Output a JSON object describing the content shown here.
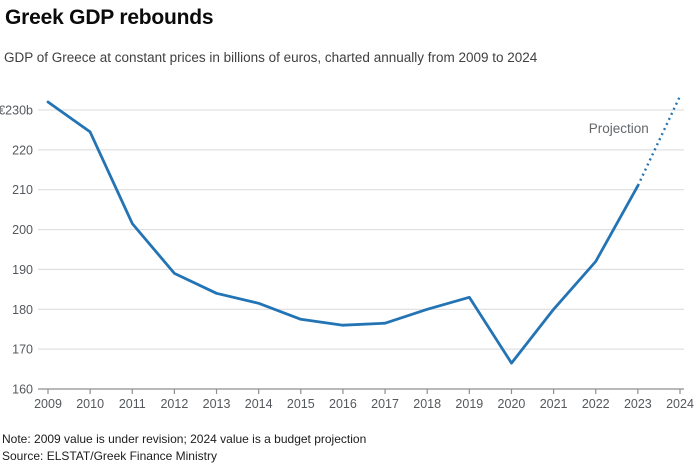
{
  "header": {
    "title": "Greek GDP rebounds",
    "subtitle": "GDP of Greece at constant prices in billions of euros, charted annually from 2009 to 2024"
  },
  "chart_data": {
    "type": "line",
    "x": [
      2009,
      2010,
      2011,
      2012,
      2013,
      2014,
      2015,
      2016,
      2017,
      2018,
      2019,
      2020,
      2021,
      2022,
      2023,
      2024
    ],
    "series": [
      {
        "name": "GDP of Greece at constant prices (billions of euros)",
        "values": [
          232,
          224.5,
          201.5,
          189,
          184,
          181.5,
          177.5,
          176,
          176.5,
          180,
          183,
          166.5,
          180,
          192,
          211,
          233.5
        ]
      }
    ],
    "projection": {
      "start_year": 2023,
      "label": "Projection",
      "label_year_x": 2023.26,
      "label_value_y": 224.2
    },
    "y_ticks": [
      230,
      220,
      210,
      200,
      190,
      180,
      170,
      160
    ],
    "y_tick_labels": [
      "€230b",
      "220",
      "210",
      "200",
      "190",
      "180",
      "170",
      "160"
    ],
    "ylim": [
      160,
      235.5
    ],
    "xlabel": "",
    "ylabel": "",
    "grid": true,
    "legend_position": "none",
    "colors": {
      "line": "#2374b5",
      "grid": "#d9d9d9",
      "axis": "#8f8f8f",
      "tick_text": "#55585c",
      "annotation_text": "#63676b"
    }
  },
  "footer": {
    "note": "Note: 2009 value is under revision; 2024 value is a budget projection",
    "source": "Source: ELSTAT/Greek Finance Ministry"
  }
}
